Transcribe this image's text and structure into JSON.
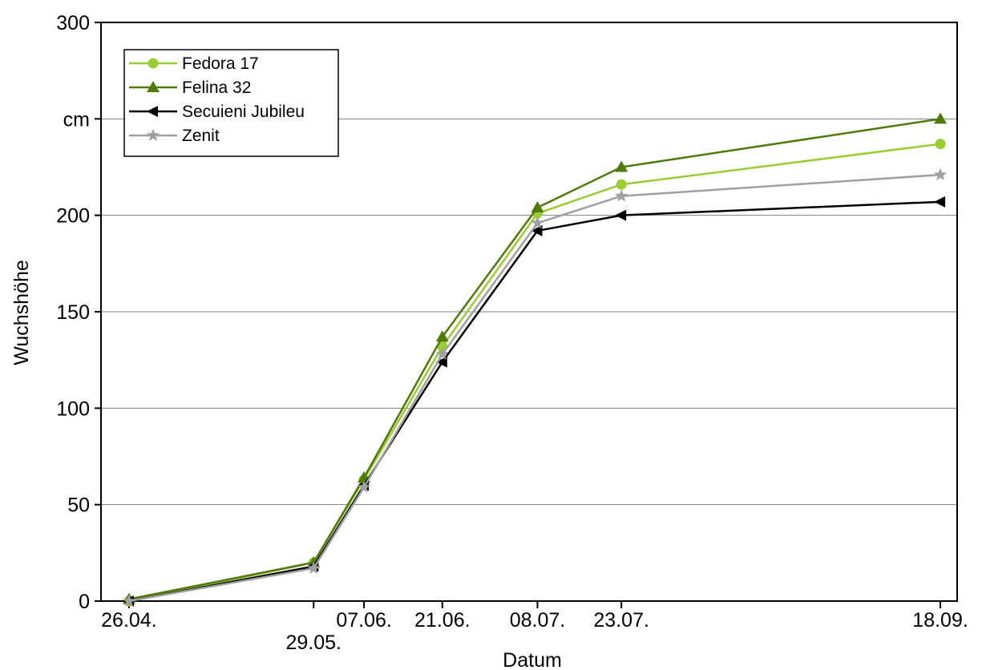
{
  "chart_data": {
    "type": "line",
    "ylabel": "Wuchshöhe",
    "xlabel": "Datum",
    "ylim": [
      0,
      300
    ],
    "yticks": [
      {
        "value": 0,
        "label": "0"
      },
      {
        "value": 50,
        "label": "50"
      },
      {
        "value": 100,
        "label": "100"
      },
      {
        "value": 150,
        "label": "150"
      },
      {
        "value": 200,
        "label": "200"
      },
      {
        "value": 250,
        "label": "cm"
      },
      {
        "value": 300,
        "label": "300"
      }
    ],
    "grid": "horizontal",
    "legend_position": "top-left",
    "x_domain": [
      "2000-04-21",
      "2000-09-21"
    ],
    "x": [
      {
        "date": "2000-04-26",
        "label": "26.04.",
        "row": 1
      },
      {
        "date": "2000-05-29",
        "label": "29.05.",
        "row": 2
      },
      {
        "date": "2000-06-07",
        "label": "07.06.",
        "row": 1
      },
      {
        "date": "2000-06-21",
        "label": "21.06.",
        "row": 1
      },
      {
        "date": "2000-07-08",
        "label": "08.07.",
        "row": 1
      },
      {
        "date": "2000-07-23",
        "label": "23.07.",
        "row": 1
      },
      {
        "date": "2000-09-18",
        "label": "18.09.",
        "row": 1
      }
    ],
    "series": [
      {
        "name": "Fedora 17",
        "color": "#9acd32",
        "marker": "circle",
        "values": [
          0,
          20,
          63,
          132,
          201,
          216,
          237
        ]
      },
      {
        "name": "Felina 32",
        "color": "#4f7a0a",
        "marker": "triangle-up",
        "values": [
          1,
          20,
          64,
          137,
          204,
          225,
          250
        ]
      },
      {
        "name": "Secuieni Jubileu",
        "color": "#000000",
        "marker": "triangle-left",
        "values": [
          0,
          18,
          60,
          124,
          192,
          200,
          207
        ]
      },
      {
        "name": "Zenit",
        "color": "#a0a0a0",
        "marker": "star",
        "values": [
          0,
          17,
          59,
          128,
          196,
          210,
          221
        ]
      }
    ]
  }
}
